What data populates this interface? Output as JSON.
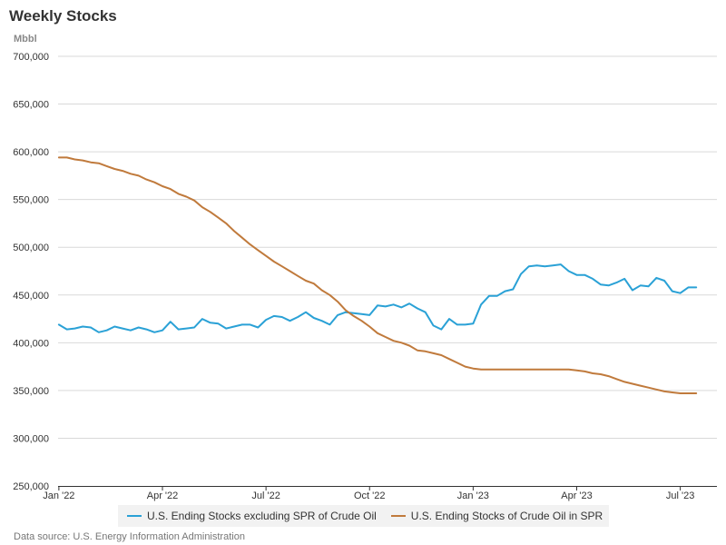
{
  "colors": {
    "series_1": "#2aa1d6",
    "series_2": "#c07a3c",
    "grid": "#d9d9d9",
    "axis": "#333333"
  },
  "chart_data": {
    "type": "line",
    "title": "Weekly Stocks",
    "ylabel": "Mbbl",
    "xlabel": "",
    "ylim": [
      250000,
      700000
    ],
    "yticks": [
      250000,
      300000,
      350000,
      400000,
      450000,
      500000,
      550000,
      600000,
      650000,
      700000
    ],
    "ytick_labels": [
      "250,000",
      "300,000",
      "350,000",
      "400,000",
      "450,000",
      "500,000",
      "550,000",
      "600,000",
      "650,000",
      "700,000"
    ],
    "xlim": [
      -0.1,
      82.6
    ],
    "xticks": [
      0,
      13,
      26,
      39,
      52,
      65,
      78
    ],
    "xtick_labels": [
      "Jan '22",
      "Apr '22",
      "Jul '22",
      "Oct '22",
      "Jan '23",
      "Apr '23",
      "Jul '23"
    ],
    "legend_position": "bottom",
    "series": [
      {
        "name": "U.S. Ending Stocks excluding SPR of Crude Oil",
        "color": "#2aa1d6",
        "values": [
          419000,
          414000,
          415000,
          417000,
          416000,
          411000,
          413000,
          417000,
          415000,
          413000,
          416000,
          414000,
          411000,
          413000,
          422000,
          414000,
          415000,
          416000,
          425000,
          421000,
          420000,
          415000,
          417000,
          419000,
          419000,
          416000,
          424000,
          428000,
          427000,
          423000,
          427000,
          432000,
          426000,
          423000,
          419000,
          429000,
          432000,
          431000,
          430000,
          429000,
          439000,
          438000,
          440000,
          437000,
          441000,
          436000,
          432000,
          418000,
          414000,
          425000,
          419000,
          419000,
          420000,
          440000,
          449000,
          449000,
          454000,
          456000,
          472000,
          480000,
          481000,
          480000,
          481000,
          482000,
          475000,
          471000,
          471000,
          467000,
          461000,
          460000,
          463000,
          467000,
          455000,
          460000,
          459000,
          468000,
          465000,
          454000,
          452000,
          458000,
          458000
        ]
      },
      {
        "name": "U.S. Ending Stocks of Crude Oil in SPR",
        "color": "#c07a3c",
        "values": [
          594000,
          594000,
          592000,
          591000,
          589000,
          588000,
          585000,
          582000,
          580000,
          577000,
          575000,
          571000,
          568000,
          564000,
          561000,
          556000,
          553000,
          549000,
          542000,
          537000,
          531000,
          525000,
          517000,
          510000,
          503000,
          497000,
          491000,
          485000,
          480000,
          475000,
          470000,
          465000,
          462000,
          455000,
          450000,
          443000,
          434000,
          428000,
          423000,
          417000,
          410000,
          406000,
          402000,
          400000,
          397000,
          392000,
          391000,
          389000,
          387000,
          383000,
          379000,
          375000,
          373000,
          372000,
          372000,
          372000,
          372000,
          372000,
          372000,
          372000,
          372000,
          372000,
          372000,
          372000,
          372000,
          371000,
          370000,
          368000,
          367000,
          365000,
          362000,
          359000,
          357000,
          355000,
          353000,
          351000,
          349000,
          348000,
          347000,
          347000,
          347000
        ]
      }
    ]
  },
  "source_note": "Data source: U.S. Energy Information Administration"
}
